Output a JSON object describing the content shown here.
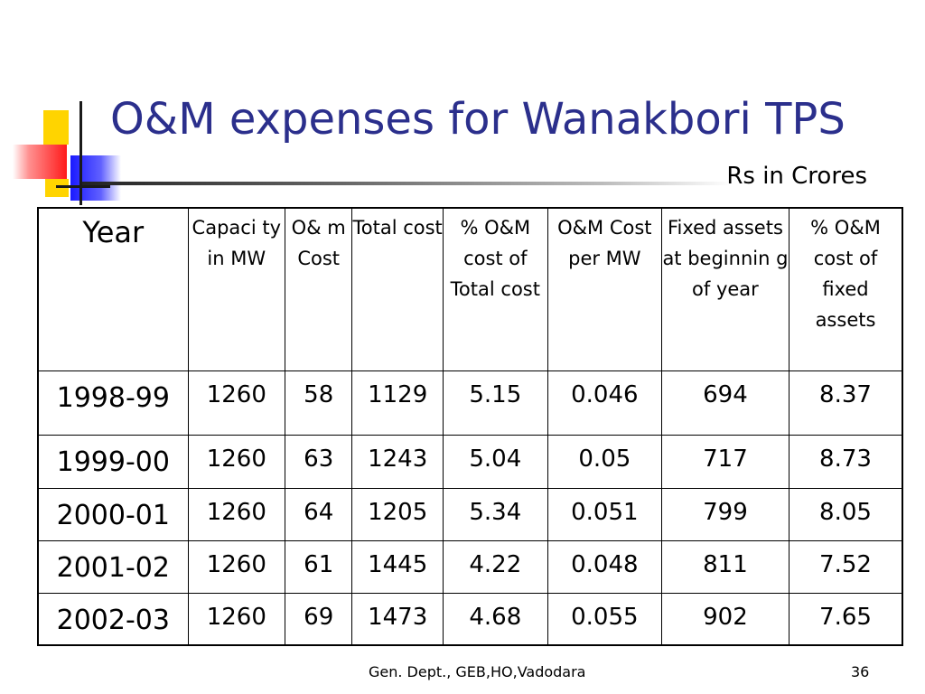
{
  "title": "O&M expenses for Wanakbori TPS",
  "units": "Rs in Crores",
  "table": {
    "headers": [
      "Year",
      "Capaci ty in MW",
      "O& m Cost",
      "Total cost",
      "% O&M cost of Total cost",
      "O&M Cost per MW",
      "Fixed assets at beginnin g of year",
      "% O&M cost of fixed assets"
    ],
    "rows": [
      [
        "1998-99",
        "1260",
        "58",
        "1129",
        "5.15",
        "0.046",
        "694",
        "8.37"
      ],
      [
        "1999-00",
        "1260",
        "63",
        "1243",
        "5.04",
        "0.05",
        "717",
        "8.73"
      ],
      [
        "2000-01",
        "1260",
        "64",
        "1205",
        "5.34",
        "0.051",
        "799",
        "8.05"
      ],
      [
        "2001-02",
        "1260",
        "61",
        "1445",
        "4.22",
        "0.048",
        "811",
        "7.52"
      ],
      [
        "2002-03",
        "1260",
        "69",
        "1473",
        "4.68",
        "0.055",
        "902",
        "7.65"
      ]
    ]
  },
  "footer": {
    "source": "Gen. Dept., GEB,HO,Vadodara",
    "page_number": "36"
  },
  "colors": {
    "title": "#2b2f8c",
    "logo_yellow": "#ffd400",
    "logo_red": "#ff1a1a",
    "logo_blue": "#1a1aff"
  }
}
